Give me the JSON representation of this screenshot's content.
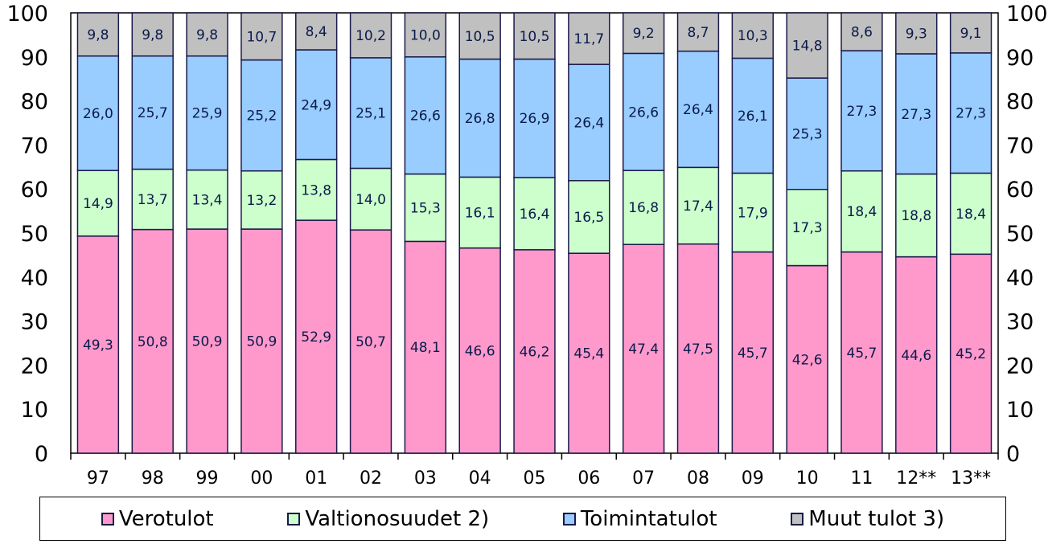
{
  "chart_data": {
    "type": "bar",
    "stacked": true,
    "categories": [
      "97",
      "98",
      "99",
      "00",
      "01",
      "02",
      "03",
      "04",
      "05",
      "06",
      "07",
      "08",
      "09",
      "10",
      "11",
      "12**",
      "13**"
    ],
    "series": [
      {
        "name": "Verotulot",
        "color": "#ff99cc",
        "values": [
          49.3,
          50.8,
          50.9,
          50.9,
          52.9,
          50.7,
          48.1,
          46.6,
          46.2,
          45.4,
          47.4,
          47.5,
          45.7,
          42.6,
          45.7,
          44.6,
          45.2
        ],
        "labels": [
          "49,3",
          "50,8",
          "50,9",
          "50,9",
          "52,9",
          "50,7",
          "48,1",
          "46,6",
          "46,2",
          "45,4",
          "47,4",
          "47,5",
          "45,7",
          "42,6",
          "45,7",
          "44,6",
          "45,2"
        ]
      },
      {
        "name": "Valtionosuudet 2)",
        "color": "#ccffcc",
        "values": [
          14.9,
          13.7,
          13.4,
          13.2,
          13.8,
          14.0,
          15.3,
          16.1,
          16.4,
          16.5,
          16.8,
          17.4,
          17.9,
          17.3,
          18.4,
          18.8,
          18.4
        ],
        "labels": [
          "14,9",
          "13,7",
          "13,4",
          "13,2",
          "13,8",
          "14,0",
          "15,3",
          "16,1",
          "16,4",
          "16,5",
          "16,8",
          "17,4",
          "17,9",
          "17,3",
          "18,4",
          "18,8",
          "18,4"
        ]
      },
      {
        "name": "Toimintatulot",
        "color": "#99ccff",
        "values": [
          26.0,
          25.7,
          25.9,
          25.2,
          24.9,
          25.1,
          26.6,
          26.8,
          26.9,
          26.4,
          26.6,
          26.4,
          26.1,
          25.3,
          27.3,
          27.3,
          27.3
        ],
        "labels": [
          "26,0",
          "25,7",
          "25,9",
          "25,2",
          "24,9",
          "25,1",
          "26,6",
          "26,8",
          "26,9",
          "26,4",
          "26,6",
          "26,4",
          "26,1",
          "25,3",
          "27,3",
          "27,3",
          "27,3"
        ]
      },
      {
        "name": "Muut tulot 3)",
        "color": "#c0c0c0",
        "values": [
          9.8,
          9.8,
          9.8,
          10.7,
          8.4,
          10.2,
          10.0,
          10.5,
          10.5,
          11.7,
          9.2,
          8.7,
          10.3,
          14.8,
          8.6,
          9.3,
          9.1
        ],
        "labels": [
          "9,8",
          "9,8",
          "9,8",
          "10,7",
          "8,4",
          "10,2",
          "10,0",
          "10,5",
          "10,5",
          "11,7",
          "9,2",
          "8,7",
          "10,3",
          "14,8",
          "8,6",
          "9,3",
          "9,1"
        ]
      }
    ],
    "ylim": [
      0,
      100
    ],
    "yticks": [
      "0",
      "10",
      "20",
      "30",
      "40",
      "50",
      "60",
      "70",
      "80",
      "90",
      "100"
    ],
    "right_axis": true,
    "grid": false,
    "legend_position": "bottom",
    "title": "",
    "xlabel": "",
    "ylabel": ""
  }
}
